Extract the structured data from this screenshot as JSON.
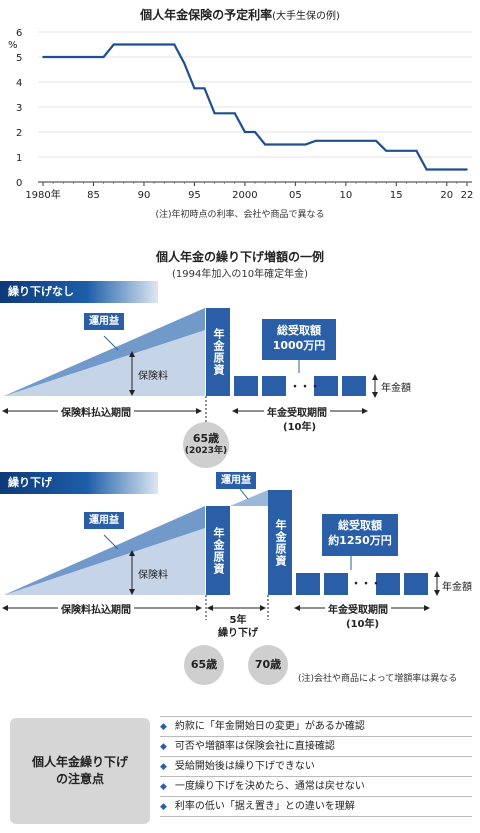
{
  "chart": {
    "title": "個人年金保険の予定利率",
    "subtitle": "(大手生保の例)",
    "note": "(注)年初時点の利率、会社や商品で異なる"
  },
  "chart_data": {
    "type": "line",
    "step": true,
    "title": "個人年金保険の予定利率(大手生保の例)",
    "ylabel": "%",
    "xlabel": "",
    "xlim": [
      1979.5,
      2022.5
    ],
    "ylim": [
      0,
      6
    ],
    "yticks": [
      0,
      1,
      2,
      3,
      4,
      5,
      6
    ],
    "xticks": [
      {
        "value": 1980,
        "label": "1980年"
      },
      {
        "value": 1985,
        "label": "85"
      },
      {
        "value": 1990,
        "label": "90"
      },
      {
        "value": 1995,
        "label": "95"
      },
      {
        "value": 2000,
        "label": "2000"
      },
      {
        "value": 2005,
        "label": "05"
      },
      {
        "value": 2010,
        "label": "10"
      },
      {
        "value": 2015,
        "label": "15"
      },
      {
        "value": 2020,
        "label": "20"
      },
      {
        "value": 2022,
        "label": "22"
      }
    ],
    "color": "#1f4f8f",
    "points": [
      {
        "x": 1980,
        "y": 5.0
      },
      {
        "x": 1985,
        "y": 5.0
      },
      {
        "x": 1986,
        "y": 5.0
      },
      {
        "x": 1987,
        "y": 5.5
      },
      {
        "x": 1990,
        "y": 5.5
      },
      {
        "x": 1993,
        "y": 5.5
      },
      {
        "x": 1994,
        "y": 4.75
      },
      {
        "x": 1995,
        "y": 3.75
      },
      {
        "x": 1996,
        "y": 3.75
      },
      {
        "x": 1997,
        "y": 2.75
      },
      {
        "x": 1999,
        "y": 2.75
      },
      {
        "x": 2000,
        "y": 2.0
      },
      {
        "x": 2001,
        "y": 2.0
      },
      {
        "x": 2002,
        "y": 1.5
      },
      {
        "x": 2005,
        "y": 1.5
      },
      {
        "x": 2006,
        "y": 1.5
      },
      {
        "x": 2007,
        "y": 1.65
      },
      {
        "x": 2010,
        "y": 1.65
      },
      {
        "x": 2013,
        "y": 1.65
      },
      {
        "x": 2014,
        "y": 1.25
      },
      {
        "x": 2016,
        "y": 1.25
      },
      {
        "x": 2017,
        "y": 1.25
      },
      {
        "x": 2018,
        "y": 0.5
      },
      {
        "x": 2020,
        "y": 0.5
      },
      {
        "x": 2022,
        "y": 0.5
      }
    ]
  },
  "diagram": {
    "title": "個人年金の繰り下げ増額の一例",
    "subtitle": "(1994年加入の10年確定年金)",
    "no_defer": {
      "label": "繰り下げなし",
      "unyou": "運用益",
      "hokenryo": "保険料",
      "genshi": "年金原資",
      "total_l1": "総受取額",
      "total_l2": "1000万円",
      "dots": "・・・",
      "nenkin_gaku": "年金額",
      "pay_period": "保険料払込期間",
      "recv_period": "年金受取期間",
      "recv_years": "(10年)",
      "age": "65歳",
      "age_year": "(2023年)"
    },
    "defer": {
      "label": "繰り下げ",
      "unyou": "運用益",
      "unyou2": "運用益",
      "hokenryo": "保険料",
      "genshi": "年金原資",
      "genshi2": "年金原資",
      "total_l1": "総受取額",
      "total_l2": "約1250万円",
      "dots": "・・・",
      "nenkin_gaku": "年金額",
      "pay_period": "保険料払込期間",
      "defer_years": "5年",
      "defer_text": "繰り下げ",
      "recv_period": "年金受取期間",
      "recv_years": "(10年)",
      "age1": "65歳",
      "age2": "70歳",
      "note": "(注)会社や商品によって増額率は異なる"
    }
  },
  "notes": {
    "title_l1": "個人年金繰り下げ",
    "title_l2": "の注意点",
    "bullet": "◆",
    "items": [
      "約款に「年金開始日の変更」があるか確認",
      "可否や増額率は保険会社に直接確認",
      "受給開始後は繰り下げできない",
      "一度繰り下げを決めたら、通常は戻せない",
      "利率の低い「据え置き」との違いを理解"
    ]
  }
}
